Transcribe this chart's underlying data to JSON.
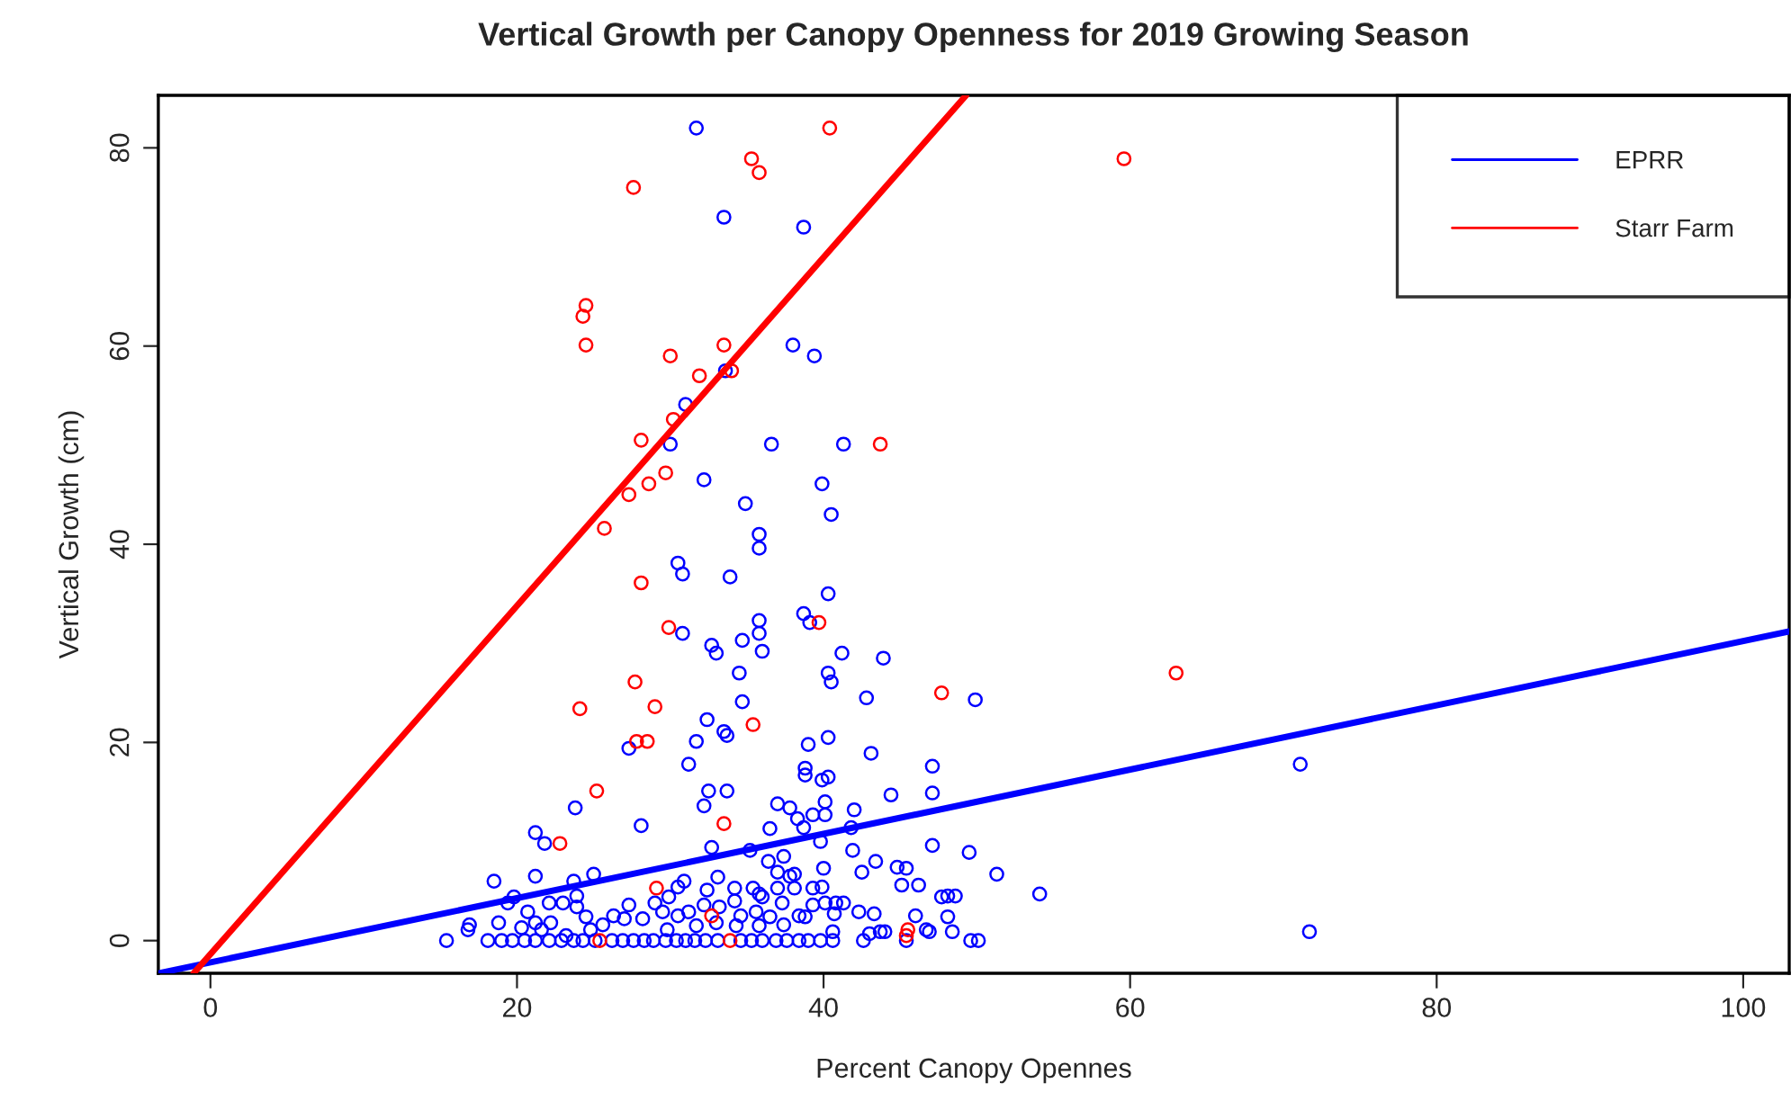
{
  "chart_data": {
    "type": "scatter",
    "title": "Vertical Growth per Canopy Openness for 2019 Growing Season",
    "xlabel": "Percent Canopy Opennes",
    "ylabel": "Vertical Growth (cm)",
    "xlim": [
      -3.4,
      103.0
    ],
    "ylim": [
      -3.3,
      85.3
    ],
    "xticks": [
      0,
      20,
      40,
      60,
      80,
      100
    ],
    "yticks": [
      0,
      20,
      40,
      60,
      80
    ],
    "grid": false,
    "legend": "top right",
    "marker": "circle",
    "series": [
      {
        "name": "EPRR",
        "color": "#0000ff",
        "x": [
          31.7,
          33.5,
          38.7,
          38.0,
          39.4,
          33.6,
          31.0,
          30.0,
          36.6,
          41.3,
          32.2,
          39.9,
          34.9,
          40.5,
          35.8,
          35.8,
          30.5,
          30.8,
          33.9,
          40.3,
          38.7,
          39.1,
          35.8,
          35.8,
          30.8,
          32.7,
          33.0,
          34.7,
          36.0,
          41.2,
          43.9,
          34.5,
          40.3,
          40.5,
          49.9,
          42.8,
          34.7,
          32.4,
          33.5,
          33.7,
          31.7,
          27.3,
          40.3,
          39.0,
          43.1,
          31.2,
          38.8,
          38.8,
          40.3,
          39.9,
          47.1,
          71.1,
          32.5,
          33.7,
          32.2,
          44.4,
          47.1,
          37.0,
          37.8,
          40.1,
          42.0,
          38.3,
          39.3,
          40.1,
          28.1,
          36.5,
          38.7,
          41.8,
          23.8,
          21.2,
          21.8,
          32.7,
          35.2,
          47.1,
          37.4,
          41.9,
          49.5,
          39.8,
          18.5,
          21.2,
          23.7,
          25.0,
          33.1,
          36.4,
          37.0,
          37.8,
          38.1,
          42.5,
          43.4,
          44.8,
          45.4,
          51.3,
          40.0,
          45.1,
          46.2,
          30.9,
          30.5,
          34.2,
          35.4,
          32.4,
          35.8,
          37.0,
          38.1,
          39.3,
          39.9,
          47.7,
          48.1,
          48.6,
          54.1,
          19.8,
          19.4,
          22.1,
          23.0,
          23.9,
          20.7,
          23.9,
          27.3,
          29.0,
          29.9,
          32.2,
          33.2,
          34.2,
          36.0,
          37.3,
          39.3,
          40.1,
          40.8,
          41.3,
          42.3,
          43.3,
          40.7,
          46.0,
          48.1,
          29.5,
          30.5,
          31.2,
          34.6,
          35.6,
          36.5,
          38.4,
          38.8,
          24.5,
          26.3,
          27.0,
          28.2,
          16.9,
          16.8,
          18.8,
          21.2,
          22.2,
          20.3,
          21.6,
          23.2,
          24.8,
          25.6,
          29.8,
          31.7,
          33.0,
          34.3,
          35.8,
          37.4,
          40.6,
          43.0,
          43.7,
          44.0,
          46.7,
          46.9,
          48.4,
          71.7,
          15.4,
          18.1,
          19.0,
          19.7,
          20.5,
          21.2,
          22.1,
          22.9,
          23.7,
          24.3,
          25.1,
          26.2,
          26.9,
          27.6,
          28.3,
          28.9,
          29.7,
          30.4,
          31.0,
          31.6,
          32.3,
          33.1,
          34.6,
          35.3,
          36.0,
          36.9,
          37.6,
          38.4,
          39.0,
          39.8,
          40.6,
          42.6,
          45.4,
          49.6,
          50.1
        ],
        "values": [
          82.0,
          73.0,
          72.0,
          60.1,
          59.0,
          57.5,
          54.1,
          50.1,
          50.1,
          50.1,
          46.5,
          46.1,
          44.1,
          43.0,
          41.0,
          39.6,
          38.1,
          37.0,
          36.7,
          35.0,
          33.0,
          32.1,
          32.3,
          31.0,
          31.0,
          29.8,
          29.0,
          30.3,
          29.2,
          29.0,
          28.5,
          27.0,
          27.0,
          26.1,
          24.3,
          24.5,
          24.1,
          22.3,
          21.1,
          20.7,
          20.1,
          19.4,
          20.5,
          19.8,
          18.9,
          17.8,
          17.4,
          16.7,
          16.5,
          16.2,
          17.6,
          17.8,
          15.1,
          15.1,
          13.6,
          14.7,
          14.9,
          13.8,
          13.4,
          14.0,
          13.2,
          12.3,
          12.7,
          12.7,
          11.6,
          11.3,
          11.4,
          11.4,
          13.4,
          10.9,
          9.8,
          9.4,
          9.1,
          9.6,
          8.5,
          9.1,
          8.9,
          10.0,
          6.0,
          6.5,
          6.0,
          6.7,
          6.4,
          8.0,
          6.9,
          6.5,
          6.7,
          6.9,
          8.0,
          7.4,
          7.3,
          6.7,
          7.3,
          5.6,
          5.6,
          6.0,
          5.4,
          5.3,
          5.3,
          5.1,
          4.7,
          5.3,
          5.3,
          5.3,
          5.4,
          4.4,
          4.5,
          4.5,
          4.7,
          4.4,
          3.8,
          3.8,
          3.8,
          4.5,
          2.9,
          3.4,
          3.6,
          3.8,
          4.4,
          3.6,
          3.4,
          4.0,
          4.4,
          3.8,
          3.6,
          3.8,
          3.8,
          3.8,
          2.9,
          2.7,
          2.7,
          2.5,
          2.4,
          2.9,
          2.5,
          2.9,
          2.5,
          2.9,
          2.4,
          2.5,
          2.4,
          2.4,
          2.5,
          2.2,
          2.2,
          1.6,
          1.1,
          1.8,
          1.8,
          1.8,
          1.3,
          1.1,
          0.5,
          1.1,
          1.6,
          1.1,
          1.5,
          1.8,
          1.5,
          1.5,
          1.6,
          0.9,
          0.7,
          0.9,
          0.9,
          1.1,
          0.9,
          0.9,
          0.9,
          0,
          0,
          0,
          0,
          0,
          0,
          0,
          0,
          0,
          0,
          0,
          0,
          0,
          0,
          0,
          0,
          0,
          0,
          0,
          0,
          0,
          0,
          0,
          0,
          0,
          0,
          0,
          0,
          0,
          0,
          0,
          0,
          0,
          0,
          0
        ]
      },
      {
        "name": "Starr Farm",
        "color": "#ff0000",
        "x": [
          27.6,
          35.3,
          35.8,
          40.4,
          59.6,
          24.5,
          24.3,
          24.5,
          30.0,
          33.5,
          31.9,
          34.0,
          30.2,
          28.1,
          29.7,
          28.6,
          27.3,
          25.7,
          28.1,
          39.7,
          29.9,
          27.7,
          47.7,
          63.0,
          24.1,
          29.0,
          35.4,
          27.8,
          28.5,
          25.2,
          43.7,
          33.5,
          22.8,
          29.1,
          32.7,
          45.5,
          45.4,
          25.4,
          33.9
        ],
        "values": [
          76.0,
          78.9,
          77.5,
          82.0,
          78.9,
          64.1,
          63.0,
          60.1,
          59.0,
          60.1,
          57.0,
          57.5,
          52.6,
          50.5,
          47.2,
          46.1,
          45.0,
          41.6,
          36.1,
          32.1,
          31.6,
          26.1,
          25.0,
          27.0,
          23.4,
          23.6,
          21.8,
          20.1,
          20.1,
          15.1,
          50.1,
          11.8,
          9.8,
          5.3,
          2.5,
          1.1,
          0.5,
          0,
          0
        ]
      },
      {
        "type": "line",
        "marker": "none",
        "color": "#0000ff",
        "x": [
          -3.4,
          103.0
        ],
        "values": [
          -3.3,
          31.2
        ]
      },
      {
        "type": "line",
        "marker": "none",
        "color": "#ff0000",
        "x": [
          -1.1,
          49.3
        ],
        "values": [
          -3.3,
          85.3
        ]
      }
    ]
  }
}
